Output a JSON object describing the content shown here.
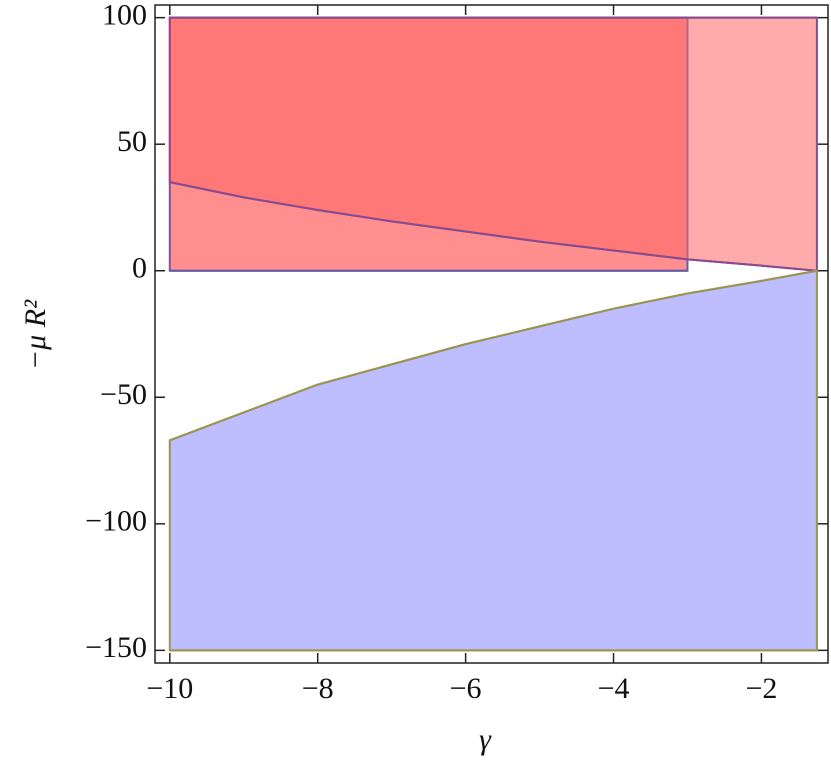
{
  "chart_data": {
    "type": "region",
    "x_label": "γ",
    "y_label": "−μ R²",
    "xlim": [
      -10.2,
      -1.1
    ],
    "ylim": [
      -155,
      105
    ],
    "xticks": [
      {
        "value": -10,
        "label": "−10"
      },
      {
        "value": -8,
        "label": "−8"
      },
      {
        "value": -6,
        "label": "−6"
      },
      {
        "value": -4,
        "label": "−4"
      },
      {
        "value": -2,
        "label": "−2"
      }
    ],
    "yticks": [
      100,
      50,
      0,
      {
        "value": -50,
        "label": "−50"
      },
      {
        "value": -100,
        "label": "−100"
      },
      {
        "value": -150,
        "label": "−150"
      }
    ],
    "series": [
      {
        "color": "#ff3333",
        "edge_color": "#6a5aa8",
        "x": [
          -10,
          -3
        ],
        "lower": [
          0,
          0
        ],
        "upper": [
          100,
          100
        ]
      },
      {
        "color": "#ff6666",
        "edge_color": "#8a4a90",
        "x": [
          -10,
          -9,
          -8,
          -7,
          -6,
          -5,
          -4,
          -3,
          -2,
          -1.25
        ],
        "lower": [
          35,
          29,
          24,
          19.5,
          15.5,
          11.5,
          8,
          4.5,
          2,
          0
        ],
        "upper": [
          100,
          100,
          100,
          100,
          100,
          100,
          100,
          100,
          100,
          100
        ]
      },
      {
        "color": "#8888ff",
        "edge_color": "#9a9450",
        "x": [
          -10,
          -9,
          -8,
          -7,
          -6,
          -5,
          -4,
          -3,
          -2,
          -1.25
        ],
        "lower": [
          -150,
          -150,
          -150,
          -150,
          -150,
          -150,
          -150,
          -150,
          -150,
          -150
        ],
        "upper": [
          -67,
          -56,
          -45,
          -37,
          -29,
          -22,
          -15,
          -9,
          -4,
          0
        ]
      }
    ]
  }
}
